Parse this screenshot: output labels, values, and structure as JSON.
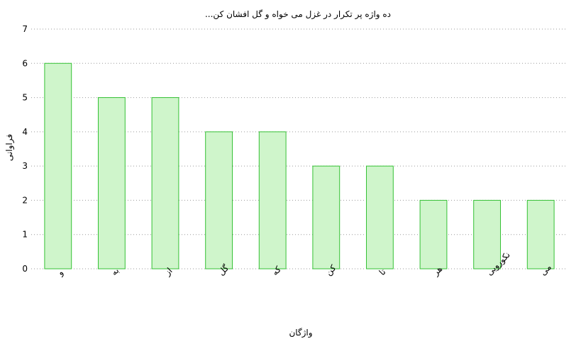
{
  "chart_data": {
    "type": "bar",
    "title": "ده واژه پر تکرار در غزل می خواه و گل افشان کن...",
    "xlabel": "واژگان",
    "ylabel": "فراوانی",
    "categories": [
      "و",
      "به",
      "از",
      "گل",
      "که",
      "کن",
      "تا",
      "هر",
      "نکورویی",
      "می"
    ],
    "values": [
      6,
      5,
      5,
      4,
      4,
      3,
      3,
      2,
      2,
      2
    ],
    "ylim": [
      0,
      7
    ],
    "yticks": [
      0,
      1,
      2,
      3,
      4,
      5,
      6,
      7
    ],
    "grid": true,
    "colors": {
      "bar_fill": "#cff5cb",
      "bar_stroke": "#35c135"
    }
  }
}
